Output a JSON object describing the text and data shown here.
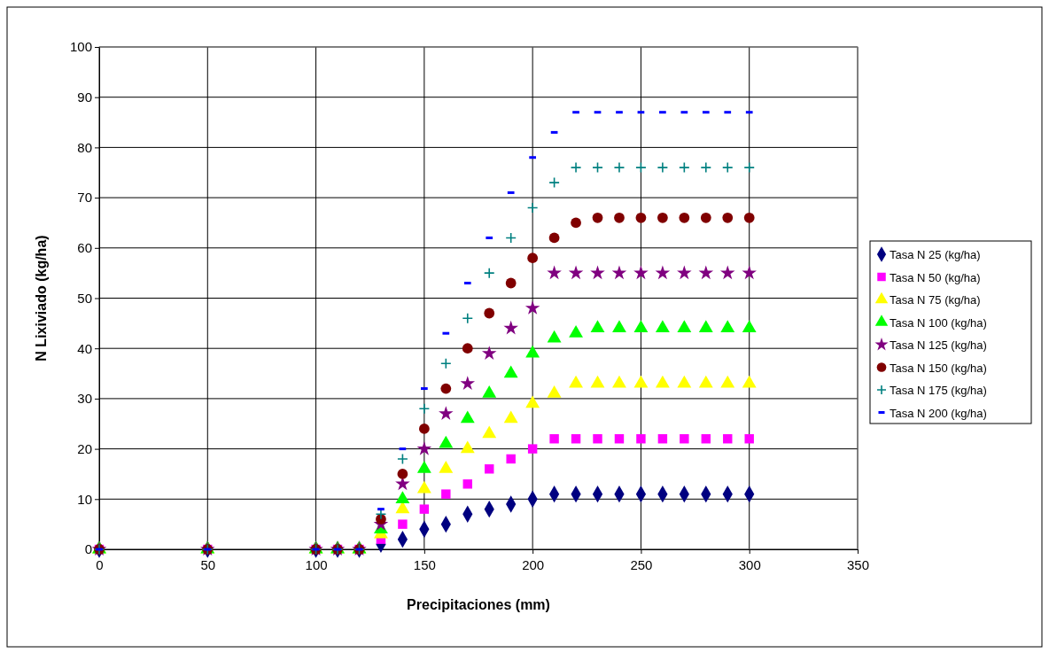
{
  "chart_data": {
    "type": "scatter",
    "xlabel": "Precipitaciones (mm)",
    "ylabel": "N Lixiviado (kg/ha)",
    "x": [
      0,
      50,
      100,
      110,
      120,
      130,
      140,
      150,
      160,
      170,
      180,
      190,
      200,
      210,
      220,
      230,
      240,
      250,
      260,
      270,
      280,
      290,
      300
    ],
    "series": [
      {
        "name": "Tasa N 25 (kg/ha)",
        "color": "#000080",
        "marker": "diamond",
        "values": [
          0,
          0,
          0,
          0,
          0,
          1,
          2,
          4,
          5,
          7,
          8,
          9,
          10,
          11,
          11,
          11,
          11,
          11,
          11,
          11,
          11,
          11,
          11
        ]
      },
      {
        "name": "Tasa N 50 (kg/ha)",
        "color": "#ff00ff",
        "marker": "square",
        "values": [
          0,
          0,
          0,
          0,
          0,
          2,
          5,
          8,
          11,
          13,
          16,
          18,
          20,
          22,
          22,
          22,
          22,
          22,
          22,
          22,
          22,
          22,
          22
        ]
      },
      {
        "name": "Tasa N 75 (kg/ha)",
        "color": "#ffff00",
        "marker": "triangle",
        "values": [
          0,
          0,
          0,
          0,
          0,
          3,
          8,
          12,
          16,
          20,
          23,
          26,
          29,
          31,
          33,
          33,
          33,
          33,
          33,
          33,
          33,
          33,
          33
        ]
      },
      {
        "name": "Tasa N 100 (kg/ha)",
        "color": "#00ff00",
        "marker": "triangle",
        "values": [
          0,
          0,
          0,
          0,
          0,
          4,
          10,
          16,
          21,
          26,
          31,
          35,
          39,
          42,
          43,
          44,
          44,
          44,
          44,
          44,
          44,
          44,
          44
        ]
      },
      {
        "name": "Tasa N 125 (kg/ha)",
        "color": "#800080",
        "marker": "star",
        "values": [
          0,
          0,
          0,
          0,
          0,
          5,
          13,
          20,
          27,
          33,
          39,
          44,
          48,
          55,
          55,
          55,
          55,
          55,
          55,
          55,
          55,
          55,
          55
        ]
      },
      {
        "name": "Tasa N 150 (kg/ha)",
        "color": "#800000",
        "marker": "circle",
        "values": [
          0,
          0,
          0,
          0,
          0,
          6,
          15,
          24,
          32,
          40,
          47,
          53,
          58,
          62,
          65,
          66,
          66,
          66,
          66,
          66,
          66,
          66,
          66
        ]
      },
      {
        "name": "Tasa N 175 (kg/ha)",
        "color": "#008080",
        "marker": "cross",
        "values": [
          0,
          0,
          0,
          0,
          0,
          7,
          18,
          28,
          37,
          46,
          55,
          62,
          68,
          73,
          76,
          76,
          76,
          76,
          76,
          76,
          76,
          76,
          76
        ]
      },
      {
        "name": "Tasa N 200 (kg/ha)",
        "color": "#0000ff",
        "values": [
          0,
          0,
          0,
          0,
          0,
          8,
          20,
          32,
          43,
          53,
          62,
          71,
          78,
          83,
          87,
          87,
          87,
          87,
          87,
          87,
          87,
          87,
          87
        ]
      }
    ],
    "xlim": [
      0,
      350
    ],
    "xticks": [
      0,
      50,
      100,
      150,
      200,
      250,
      300,
      350
    ],
    "ylim": [
      0,
      100
    ],
    "yticks": [
      0,
      10,
      20,
      30,
      40,
      50,
      60,
      70,
      80,
      90,
      100
    ],
    "grid": true,
    "legend": "right"
  }
}
